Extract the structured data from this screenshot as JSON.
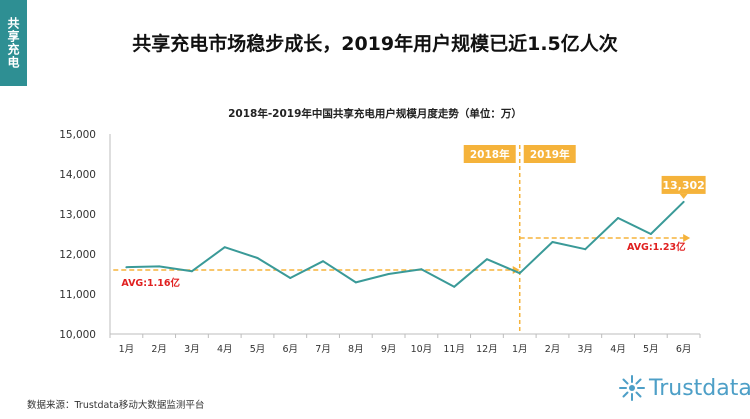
{
  "side_tab": {
    "label": "共享充电"
  },
  "headline": "共享充电市场稳步成长，2019年用户规模已近1.5亿人次",
  "source": "数据来源：Trustdata移动大数据监测平台",
  "logo": {
    "word": "Trustdata",
    "icon": "sunburst-logo-icon"
  },
  "colors": {
    "accent": "#2e8f93",
    "line": "#3a9a98",
    "highlight": "#f5b33b",
    "avg_label": "#e02020"
  },
  "chart_data": {
    "type": "line",
    "title": "2018年-2019年中国共享充电用户规模月度走势（单位：万）",
    "categories": [
      "1月",
      "2月",
      "3月",
      "4月",
      "5月",
      "6月",
      "7月",
      "8月",
      "9月",
      "10月",
      "11月",
      "12月",
      "1月",
      "2月",
      "3月",
      "4月",
      "5月",
      "6月"
    ],
    "values": [
      11670,
      11690,
      11570,
      12170,
      11900,
      11400,
      11820,
      11290,
      11500,
      11620,
      11180,
      11870,
      11520,
      12300,
      12120,
      12900,
      12500,
      13302
    ],
    "ylim": [
      10000,
      15000
    ],
    "yticks": [
      "10,000",
      "11,000",
      "12,000",
      "13,000",
      "14,000",
      "15,000"
    ],
    "ytick_values": [
      10000,
      11000,
      12000,
      13000,
      14000,
      15000
    ],
    "grid": false,
    "periods": [
      {
        "label": "2018年",
        "from": 0,
        "to": 11
      },
      {
        "label": "2019年",
        "from": 12,
        "to": 17
      }
    ],
    "averages": [
      {
        "label": "AVG:1.16亿",
        "value": 11600,
        "from": 0,
        "to": 12
      },
      {
        "label": "AVG:1.23亿",
        "value": 12400,
        "from": 12,
        "to": 17
      }
    ],
    "callout": {
      "label": "13,302",
      "index": 17
    }
  }
}
